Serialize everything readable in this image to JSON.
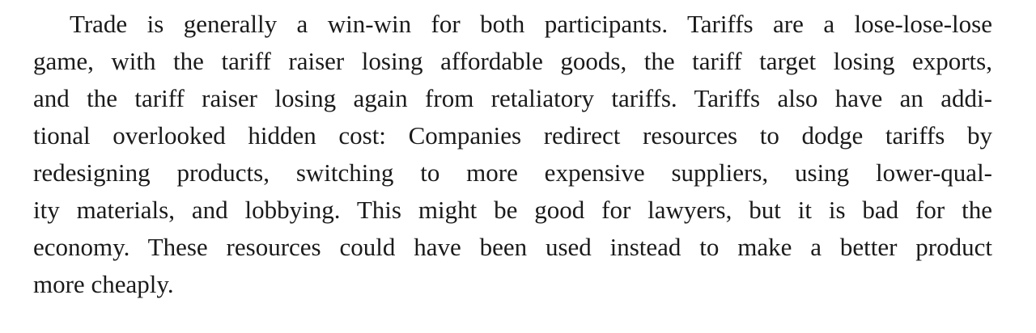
{
  "paragraph": {
    "lines": [
      "Trade is generally a win-win for both participants. Tariffs are a lose-lose-lose",
      "game, with the tariff raiser losing affordable goods, the tariff target losing exports,",
      "and the tariff raiser losing again from retaliatory tariffs. Tariffs also have an addi-",
      "tional overlooked hidden cost: Companies redirect resources to dodge tariffs by",
      "redesigning products, switching to more expensive suppliers, using lower-qual-",
      "ity materials, and lobbying. This might be good for lawyers, but it is bad for the",
      "economy. These resources could have been used instead to make a better product",
      "more cheaply."
    ]
  }
}
